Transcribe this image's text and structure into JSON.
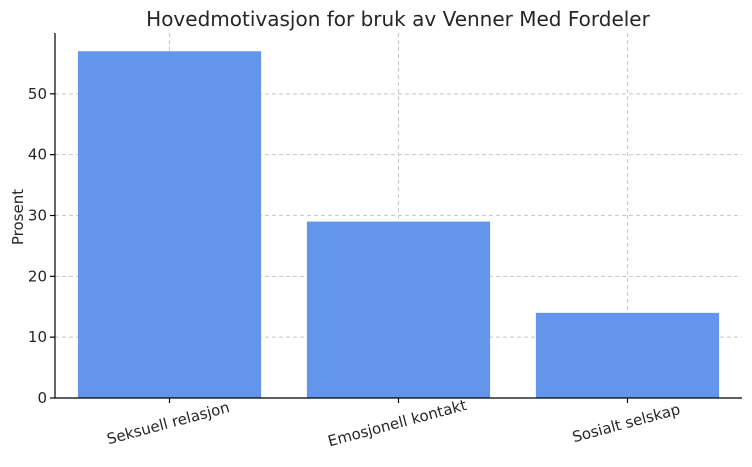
{
  "chart_data": {
    "type": "bar",
    "title": "Hovedmotivasjon for bruk av Venner Med Fordeler",
    "xlabel": "",
    "ylabel": "Prosent",
    "categories": [
      "Seksuell relasjon",
      "Emosjonell kontakt",
      "Sosialt selskap"
    ],
    "values": [
      57,
      29,
      14
    ],
    "ylim": [
      0,
      60
    ],
    "yticks": [
      0,
      10,
      20,
      30,
      40,
      50
    ],
    "grid": true,
    "bar_color": "#6495ed"
  }
}
